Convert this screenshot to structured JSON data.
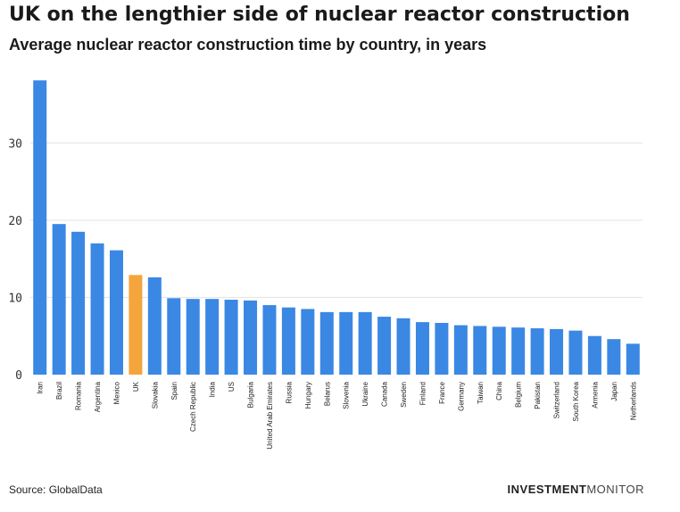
{
  "header": {
    "title": "UK on the lengthier side of nuclear reactor construction",
    "subtitle": "Average nuclear reactor construction time by country, in years"
  },
  "footer": {
    "source": "Source: GlobalData",
    "brand_bold": "INVESTMENT",
    "brand_light": "MONITOR"
  },
  "colors": {
    "bar": "#3a88e3",
    "highlight": "#f5a53d",
    "grid": "#e3e3e3"
  },
  "chart_data": {
    "type": "bar",
    "title": "UK on the lengthier side of nuclear reactor construction",
    "subtitle": "Average nuclear reactor construction time by country, in years",
    "xlabel": "",
    "ylabel": "",
    "ylim": [
      0,
      38
    ],
    "yticks": [
      0,
      10,
      20,
      30
    ],
    "grid": true,
    "highlight": "UK",
    "categories": [
      "Iran",
      "Brazil",
      "Romania",
      "Argentina",
      "Mexico",
      "UK",
      "Slovakia",
      "Spain",
      "Czech Republic",
      "India",
      "US",
      "Bulgaria",
      "United Arab Emirates",
      "Russia",
      "Hungary",
      "Belarus",
      "Slovenia",
      "Ukraine",
      "Canada",
      "Sweden",
      "Finland",
      "France",
      "Germany",
      "Taiwan",
      "China",
      "Belgium",
      "Pakistan",
      "Switzerland",
      "South Korea",
      "Armenia",
      "Japan",
      "Netherlands"
    ],
    "values": [
      38.1,
      19.5,
      18.5,
      17.0,
      16.1,
      12.9,
      12.6,
      9.9,
      9.8,
      9.8,
      9.7,
      9.6,
      9.0,
      8.7,
      8.5,
      8.1,
      8.1,
      8.1,
      7.5,
      7.3,
      6.8,
      6.7,
      6.4,
      6.3,
      6.2,
      6.1,
      6.0,
      5.9,
      5.7,
      5.0,
      4.6,
      4.0
    ]
  }
}
